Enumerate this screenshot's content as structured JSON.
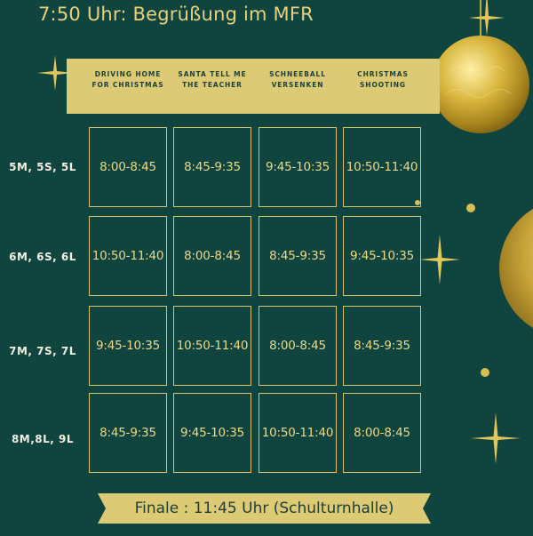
{
  "title": "7:50 Uhr: Begrüßung im MFR",
  "columns": [
    "DRIVING HOME FOR CHRISTMAS",
    "SANTA TELL ME THE TEACHER",
    "SCHNEEBALL VERSENKEN",
    "CHRISTMAS SHOOTING"
  ],
  "rows": [
    {
      "label": "5M, 5S, 5L",
      "times": [
        "8:00-8:45",
        "8:45-9:35",
        "9:45-10:35",
        "10:50-11:40"
      ]
    },
    {
      "label": "6M, 6S, 6L",
      "times": [
        "10:50-11:40",
        "8:00-8:45",
        "8:45-9:35",
        "9:45-10:35"
      ]
    },
    {
      "label": "7M, 7S, 7L",
      "times": [
        "9:45-10:35",
        "10:50-11:40",
        "8:00-8:45",
        "8:45-9:35"
      ]
    },
    {
      "label": "8M,8L, 9L",
      "times": [
        "8:45-9:35",
        "9:45-10:35",
        "10:50-11:40",
        "8:00-8:45"
      ]
    }
  ],
  "finale": "Finale : 11:45 Uhr (Schulturnhalle)",
  "colors": {
    "background": "#10443f",
    "gold": "#dccb74",
    "text": "#e9d98a"
  }
}
